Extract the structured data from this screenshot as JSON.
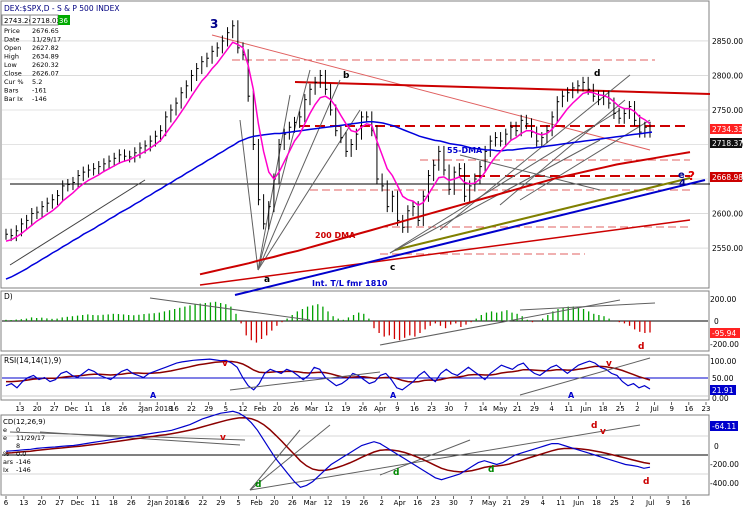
{
  "header": {
    "symbol_title": "DEX:$SPX,D - S & P 500 INDEX",
    "price_a": "2743.26",
    "price_b": "2718.03",
    "price_c": "36",
    "info_labels": [
      "Price",
      "Date",
      "Open",
      "High",
      "Low",
      "Close",
      "Cur %",
      "Bars",
      "Bar Ix"
    ],
    "info_values": [
      "2676.65",
      "11/29/17",
      "2627.82",
      "2634.89",
      "2620.32",
      "2626.07",
      "5.2",
      "-161",
      "-146"
    ]
  },
  "rsi_label": "RSI(14,14(1),9)",
  "macd_info": {
    "title": "CD(12,26,9)",
    "labels": [
      "e",
      "e",
      "",
      "% ",
      "ars",
      "Ix"
    ],
    "values": [
      "0",
      "11/29/17",
      "8",
      "0.0",
      "-146",
      "-146"
    ]
  },
  "annotations": {
    "wave3": "3",
    "b": "b",
    "d": "d",
    "a": "a",
    "c": "c",
    "e": "e",
    "q": "?",
    "four": "4",
    "dma55": "55-DMA",
    "dma200": "200 DMA",
    "tl": "Int. T/L fmr 1810",
    "osc_d": "d",
    "rsi_v1": "v",
    "rsi_v2": "v",
    "rsi_a1": "A",
    "rsi_a2": "A",
    "rsi_a3": "A",
    "macd_v1": "v",
    "macd_v2": "v",
    "macd_d_red": "d",
    "macd_d1": "d",
    "macd_d2": "d",
    "macd_d3": "d",
    "macd_d4": "d"
  },
  "chart_data": {
    "type": "line",
    "title": "DEX:$SPX,D - S & P 500 INDEX",
    "price_axis": {
      "ylim": [
        2495,
        2905
      ],
      "ticks": [
        2550,
        2600,
        2650,
        2700,
        2750,
        2800,
        2850
      ]
    },
    "price_labels": {
      "upper": "2734.33",
      "close": "2718.37",
      "red": "2668.98"
    },
    "osc_axis": {
      "ticks": [
        "200.00",
        "0",
        "-200.00"
      ],
      "last": "-95.94"
    },
    "rsi_axis": {
      "ticks": [
        "100.00",
        "50.00",
        "0.00"
      ],
      "last": "21.91"
    },
    "macd_axis": {
      "ticks": [
        "200.00",
        "0",
        "-200.00",
        "-400.00"
      ],
      "last": "-64.11"
    },
    "x_axis_main": [
      "13",
      "20",
      "27",
      "Dec",
      "11",
      "18",
      "26",
      "2",
      "Jan 2018",
      "16",
      "22",
      "29",
      "5",
      "12",
      "Feb",
      "20",
      "26",
      "Mar",
      "12",
      "19",
      "26",
      "Apr",
      "9",
      "16",
      "23",
      "30",
      "7",
      "14",
      "May",
      "21",
      "29",
      "4",
      "11",
      "Jun",
      "18",
      "25",
      "2",
      "Jul",
      "9",
      "16",
      "23"
    ],
    "x_axis_bottom": [
      "6",
      "13",
      "20",
      "27",
      "Dec",
      "11",
      "18",
      "26",
      "2",
      "Jan 2018",
      "16",
      "22",
      "29",
      "5",
      "Feb",
      "20",
      "26",
      "Mar",
      "12",
      "19",
      "26",
      "2",
      "Apr",
      "16",
      "23",
      "30",
      "7",
      "May",
      "21",
      "29",
      "4",
      "11",
      "Jun",
      "18",
      "25",
      "2",
      "Jul",
      "9",
      "16"
    ],
    "close": [
      2570,
      2568,
      2575,
      2585,
      2590,
      2600,
      2602,
      2610,
      2615,
      2620,
      2626,
      2640,
      2642,
      2645,
      2655,
      2660,
      2663,
      2665,
      2668,
      2672,
      2676,
      2680,
      2685,
      2683,
      2682,
      2688,
      2695,
      2698,
      2705,
      2712,
      2720,
      2740,
      2750,
      2760,
      2775,
      2785,
      2800,
      2810,
      2820,
      2825,
      2835,
      2840,
      2850,
      2862,
      2872,
      2840,
      2830,
      2770,
      2700,
      2620,
      2585,
      2610,
      2650,
      2700,
      2715,
      2725,
      2732,
      2740,
      2765,
      2780,
      2790,
      2800,
      2780,
      2750,
      2720,
      2710,
      2690,
      2700,
      2715,
      2740,
      2740,
      2720,
      2650,
      2640,
      2610,
      2625,
      2590,
      2580,
      2604,
      2610,
      2590,
      2625,
      2655,
      2670,
      2690,
      2663,
      2635,
      2660,
      2665,
      2625,
      2640,
      2650,
      2668,
      2690,
      2705,
      2710,
      2705,
      2715,
      2725,
      2720,
      2735,
      2730,
      2718,
      2705,
      2710,
      2720,
      2740,
      2762,
      2770,
      2775,
      2782,
      2785,
      2790,
      2780,
      2770,
      2765,
      2770,
      2760,
      2745,
      2738,
      2745,
      2755,
      2735,
      2718,
      2725,
      2718
    ],
    "ma_short": [
      2560,
      2562,
      2566,
      2571,
      2577,
      2583,
      2589,
      2594,
      2599,
      2604,
      2610,
      2618,
      2624,
      2630,
      2637,
      2643,
      2648,
      2652,
      2656,
      2661,
      2665,
      2669,
      2673,
      2676,
      2678,
      2682,
      2686,
      2690,
      2695,
      2700,
      2706,
      2716,
      2726,
      2736,
      2747,
      2758,
      2770,
      2781,
      2792,
      2800,
      2810,
      2818,
      2828,
      2838,
      2848,
      2845,
      2840,
      2815,
      2780,
      2730,
      2690,
      2660,
      2650,
      2660,
      2675,
      2690,
      2705,
      2715,
      2730,
      2745,
      2758,
      2768,
      2770,
      2765,
      2755,
      2742,
      2730,
      2720,
      2718,
      2725,
      2730,
      2728,
      2705,
      2685,
      2665,
      2655,
      2640,
      2625,
      2620,
      2618,
      2612,
      2616,
      2628,
      2640,
      2652,
      2653,
      2648,
      2650,
      2653,
      2645,
      2643,
      2644,
      2650,
      2660,
      2672,
      2682,
      2690,
      2698,
      2706,
      2710,
      2716,
      2720,
      2720,
      2716,
      2714,
      2716,
      2722,
      2732,
      2742,
      2752,
      2760,
      2767,
      2774,
      2776,
      2775,
      2772,
      2771,
      2768,
      2762,
      2755,
      2752,
      2752,
      2748,
      2740,
      2736,
      2730
    ],
    "ma55": [
      2505,
      2508,
      2512,
      2516,
      2520,
      2525,
      2529,
      2534,
      2538,
      2543,
      2547,
      2552,
      2556,
      2561,
      2565,
      2570,
      2574,
      2578,
      2583,
      2587,
      2592,
      2596,
      2601,
      2605,
      2609,
      2614,
      2618,
      2623,
      2627,
      2632,
      2636,
      2641,
      2645,
      2650,
      2654,
      2659,
      2663,
      2668,
      2672,
      2677,
      2681,
      2686,
      2690,
      2695,
      2699,
      2704,
      2707,
      2710,
      2712,
      2713,
      2714,
      2715,
      2716,
      2716,
      2717,
      2718,
      2719,
      2720,
      2721,
      2722,
      2723,
      2724,
      2725,
      2726,
      2727,
      2728,
      2729,
      2730,
      2731,
      2732,
      2733,
      2733,
      2732,
      2731,
      2729,
      2727,
      2724,
      2721,
      2718,
      2715,
      2712,
      2710,
      2708,
      2706,
      2705,
      2703,
      2701,
      2700,
      2699,
      2697,
      2695,
      2694,
      2693,
      2692,
      2692,
      2691,
      2691,
      2692,
      2692,
      2693,
      2694,
      2695,
      2695,
      2696,
      2697,
      2698,
      2699,
      2700,
      2701,
      2702,
      2703,
      2704,
      2705,
      2706,
      2707,
      2708,
      2709,
      2710,
      2711,
      2712,
      2713,
      2714,
      2715,
      2716,
      2717,
      2718
    ],
    "ma200": [
      2512,
      2516,
      2520,
      2524,
      2528,
      2533,
      2537,
      2542,
      2546,
      2551,
      2556,
      2561,
      2566,
      2571,
      2576,
      2581,
      2586,
      2591,
      2596,
      2601,
      2606,
      2611,
      2616,
      2621,
      2626,
      2631,
      2636,
      2641,
      2646,
      2651,
      2655,
      2659,
      2663,
      2667,
      2671,
      2674,
      2677,
      2680,
      2683,
      2686,
      2689
    ],
    "osc": [
      10,
      8,
      12,
      15,
      20,
      30,
      25,
      28,
      22,
      18,
      20,
      30,
      35,
      40,
      45,
      50,
      55,
      50,
      48,
      52,
      55,
      60,
      58,
      55,
      50,
      48,
      52,
      58,
      62,
      65,
      70,
      80,
      90,
      100,
      110,
      120,
      130,
      140,
      145,
      150,
      155,
      160,
      150,
      140,
      120,
      60,
      -20,
      -120,
      -160,
      -180,
      -150,
      -120,
      -80,
      -40,
      -10,
      20,
      50,
      80,
      100,
      120,
      130,
      140,
      120,
      80,
      40,
      20,
      10,
      30,
      50,
      70,
      60,
      20,
      -60,
      -100,
      -130,
      -120,
      -150,
      -160,
      -140,
      -120,
      -130,
      -100,
      -70,
      -40,
      -20,
      -40,
      -60,
      -30,
      -20,
      -50,
      -30,
      -10,
      20,
      50,
      70,
      80,
      70,
      80,
      90,
      70,
      60,
      40,
      10,
      -10,
      0,
      20,
      50,
      80,
      100,
      110,
      120,
      120,
      115,
      100,
      80,
      60,
      50,
      40,
      20,
      0,
      -10,
      -20,
      -40,
      -70,
      -90,
      -100,
      -96
    ],
    "rsi": [
      30,
      35,
      25,
      40,
      50,
      55,
      45,
      50,
      40,
      45,
      60,
      65,
      55,
      50,
      60,
      70,
      65,
      55,
      50,
      45,
      55,
      65,
      70,
      60,
      55,
      50,
      60,
      65,
      70,
      75,
      80,
      85,
      88,
      90,
      92,
      93,
      94,
      95,
      93,
      91,
      92,
      85,
      75,
      50,
      30,
      20,
      35,
      60,
      70,
      65,
      60,
      70,
      65,
      55,
      45,
      55,
      75,
      70,
      50,
      40,
      30,
      35,
      45,
      60,
      55,
      45,
      35,
      40,
      55,
      60,
      45,
      25,
      20,
      30,
      40,
      55,
      65,
      50,
      40,
      60,
      70,
      60,
      55,
      65,
      75,
      65,
      55,
      45,
      60,
      70,
      80,
      75,
      70,
      80,
      85,
      70,
      60,
      55,
      65,
      75,
      80,
      70,
      60,
      70,
      80,
      85,
      90,
      85,
      75,
      70,
      60,
      55,
      40,
      30,
      35,
      25,
      30,
      22
    ],
    "rsi_signal": [
      40,
      40,
      41,
      42,
      44,
      46,
      47,
      48,
      48,
      48,
      50,
      52,
      53,
      54,
      55,
      57,
      58,
      58,
      57,
      56,
      57,
      58,
      60,
      61,
      61,
      60,
      60,
      61,
      62,
      64,
      66,
      69,
      72,
      75,
      78,
      81,
      83,
      85,
      87,
      88,
      89,
      89,
      87,
      83,
      76,
      68,
      63,
      62,
      63,
      64,
      64,
      65,
      65,
      64,
      62,
      61,
      62,
      63,
      62,
      59,
      55,
      52,
      50,
      51,
      52,
      52,
      50,
      48,
      49,
      50,
      50,
      47,
      43,
      40,
      39,
      40,
      43,
      44,
      43,
      45,
      48,
      50,
      51,
      53,
      56,
      57,
      57,
      56,
      56,
      58,
      61,
      63,
      64,
      66,
      69,
      69,
      68,
      67,
      66,
      67,
      69,
      69,
      68,
      68,
      70,
      72,
      75,
      77,
      77,
      76,
      74,
      71,
      67,
      62,
      57,
      52,
      48,
      44
    ],
    "macd": [
      20,
      22,
      25,
      28,
      30,
      35,
      38,
      40,
      42,
      45,
      48,
      50,
      55,
      60,
      65,
      70,
      75,
      80,
      85,
      90,
      95,
      100,
      105,
      110,
      115,
      120,
      125,
      130,
      140,
      150,
      160,
      175,
      190,
      200,
      210,
      220,
      225,
      230,
      220,
      200,
      170,
      130,
      80,
      30,
      -20,
      -60,
      -100,
      -140,
      -170,
      -160,
      -140,
      -110,
      -80,
      -50,
      -30,
      -10,
      10,
      30,
      50,
      60,
      70,
      60,
      40,
      20,
      0,
      -20,
      -40,
      -60,
      -80,
      -100,
      -120,
      -130,
      -120,
      -110,
      -100,
      -80,
      -60,
      -40,
      -30,
      -40,
      -50,
      -40,
      -20,
      0,
      10,
      20,
      30,
      40,
      50,
      60,
      60,
      50,
      40,
      30,
      20,
      10,
      0,
      -10,
      -20,
      -30,
      -40,
      -50,
      -55,
      -60,
      -70,
      -64
    ],
    "macd_signal": [
      10,
      12,
      15,
      18,
      20,
      24,
      28,
      31,
      34,
      37,
      40,
      43,
      46,
      50,
      54,
      58,
      62,
      67,
      71,
      76,
      80,
      85,
      89,
      94,
      98,
      103,
      107,
      112,
      118,
      124,
      131,
      139,
      148,
      157,
      166,
      175,
      183,
      190,
      195,
      196,
      191,
      179,
      160,
      134,
      103,
      71,
      37,
      3,
      -31,
      -57,
      -74,
      -81,
      -81,
      -75,
      -66,
      -55,
      -42,
      -28,
      -12,
      2,
      16,
      25,
      28,
      26,
      21,
      13,
      2,
      -10,
      -24,
      -39,
      -55,
      -70,
      -80,
      -86,
      -89,
      -87,
      -82,
      -74,
      -65,
      -60,
      -58,
      -54,
      -48,
      -38,
      -28,
      -18,
      -8,
      2,
      12,
      22,
      30,
      34,
      35,
      34,
      31,
      27,
      21,
      15,
      8,
      0,
      -8,
      -16,
      -24,
      -32,
      -40,
      -45
    ]
  }
}
